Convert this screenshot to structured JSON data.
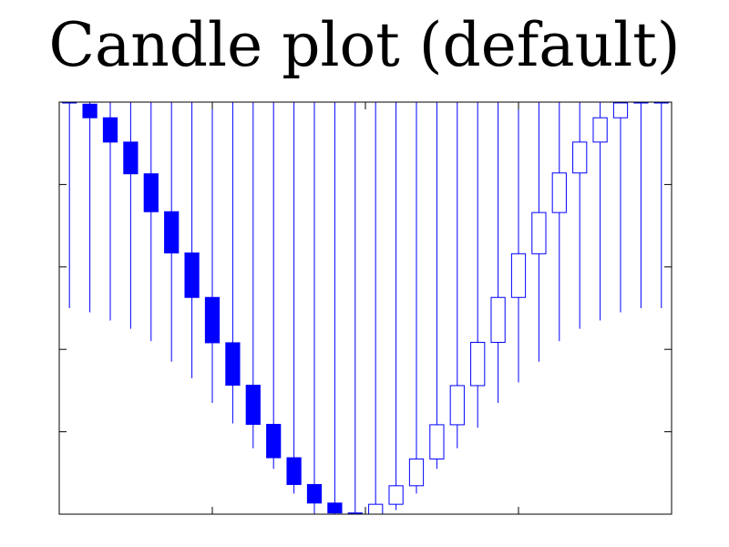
{
  "chart_data": {
    "type": "candlestick",
    "title": "Candle plot (default)",
    "xlabel": "",
    "ylabel": "",
    "xlim": [
      0,
      30
    ],
    "ylim": [
      0,
      100
    ],
    "x_ticks": [
      0,
      7.5,
      15,
      22.5,
      30
    ],
    "y_ticks": [
      0,
      20,
      40,
      60,
      80,
      100
    ],
    "x_tick_labels": [],
    "y_tick_labels": [],
    "grid": false,
    "series_color": "#0000ff",
    "candles": [
      {
        "x": 0,
        "open": 109,
        "close": 100,
        "low": 50,
        "high": 150
      },
      {
        "x": 1,
        "open": 99.5,
        "close": 96.2,
        "low": 49,
        "high": 149
      },
      {
        "x": 2,
        "open": 96.2,
        "close": 90.3,
        "low": 47,
        "high": 146
      },
      {
        "x": 3,
        "open": 90.3,
        "close": 82.6,
        "low": 45,
        "high": 144
      },
      {
        "x": 4,
        "open": 82.6,
        "close": 73.4,
        "low": 42,
        "high": 141
      },
      {
        "x": 5,
        "open": 73.4,
        "close": 63.4,
        "low": 37,
        "high": 138
      },
      {
        "x": 6,
        "open": 63.4,
        "close": 52.6,
        "low": 33,
        "high": 135
      },
      {
        "x": 7,
        "open": 52.6,
        "close": 41.6,
        "low": 27,
        "high": 132
      },
      {
        "x": 8,
        "open": 41.6,
        "close": 31.3,
        "low": 22,
        "high": 129
      },
      {
        "x": 9,
        "open": 31.3,
        "close": 21.8,
        "low": 16,
        "high": 126
      },
      {
        "x": 10,
        "open": 21.8,
        "close": 13.7,
        "low": 11,
        "high": 124
      },
      {
        "x": 11,
        "open": 13.7,
        "close": 7.2,
        "low": 5,
        "high": 121
      },
      {
        "x": 12,
        "open": 7.2,
        "close": 2.7,
        "low": 0,
        "high": 119
      },
      {
        "x": 13,
        "open": 2.7,
        "close": 0.3,
        "low": 0,
        "high": 118
      },
      {
        "x": 14,
        "open": 0.3,
        "close": 0,
        "low": 0,
        "high": 117
      },
      {
        "x": 15,
        "open": 0,
        "close": 2.4,
        "low": 0,
        "high": 117
      },
      {
        "x": 16,
        "open": 2.4,
        "close": 6.9,
        "low": 1,
        "high": 117
      },
      {
        "x": 17,
        "open": 6.9,
        "close": 13.4,
        "low": 5,
        "high": 120
      },
      {
        "x": 18,
        "open": 13.4,
        "close": 21.7,
        "low": 11,
        "high": 123
      },
      {
        "x": 19,
        "open": 21.7,
        "close": 31.2,
        "low": 16,
        "high": 126
      },
      {
        "x": 20,
        "open": 31.2,
        "close": 41.7,
        "low": 21,
        "high": 129
      },
      {
        "x": 21,
        "open": 41.7,
        "close": 52.6,
        "low": 27,
        "high": 132
      },
      {
        "x": 22,
        "open": 52.6,
        "close": 63.2,
        "low": 32,
        "high": 135
      },
      {
        "x": 23,
        "open": 63.2,
        "close": 73.2,
        "low": 37,
        "high": 138
      },
      {
        "x": 24,
        "open": 73.2,
        "close": 82.8,
        "low": 42,
        "high": 141
      },
      {
        "x": 25,
        "open": 82.8,
        "close": 90.3,
        "low": 45,
        "high": 144
      },
      {
        "x": 26,
        "open": 90.3,
        "close": 96.2,
        "low": 47,
        "high": 146
      },
      {
        "x": 27,
        "open": 96.2,
        "close": 99.8,
        "low": 49,
        "high": 149
      },
      {
        "x": 28,
        "open": 99.8,
        "close": 101,
        "low": 50,
        "high": 150
      },
      {
        "x": 29,
        "open": 101,
        "close": 105,
        "low": 50,
        "high": 150
      }
    ]
  }
}
